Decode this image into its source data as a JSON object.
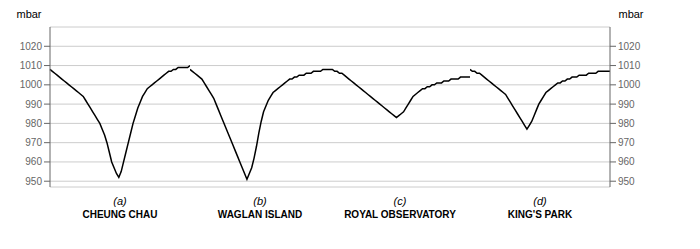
{
  "chart_data": [
    {
      "type": "line",
      "title": "(a)",
      "subtitle": "CHEUNG CHAU",
      "ylabel": "mbar",
      "ylim": [
        947,
        1030
      ],
      "yticks": [
        950,
        960,
        970,
        980,
        990,
        1000,
        1010,
        1020
      ],
      "grid": true,
      "tick_labels": "y",
      "color": "#000000",
      "values": [
        1008,
        1007,
        1006,
        1005,
        1004,
        1003,
        1002,
        1001,
        1000,
        999,
        998,
        997,
        996,
        995,
        994,
        992,
        990,
        988,
        986,
        984,
        982,
        980,
        977,
        974,
        970,
        965,
        960,
        957,
        954,
        952,
        955,
        960,
        965,
        970,
        975,
        980,
        984,
        988,
        991,
        994,
        996,
        998,
        999,
        1000,
        1001,
        1002,
        1003,
        1004,
        1005,
        1006,
        1007,
        1007,
        1008,
        1008,
        1009,
        1009,
        1009,
        1009,
        1009,
        1010
      ]
    },
    {
      "type": "line",
      "title": "(b)",
      "subtitle": "WAGLAN ISLAND",
      "ylim": [
        947,
        1030
      ],
      "yticks": [
        950,
        960,
        970,
        980,
        990,
        1000,
        1010,
        1020
      ],
      "grid": true,
      "tick_labels": false,
      "color": "#000000",
      "values": [
        1008,
        1007,
        1006,
        1005,
        1004,
        1003,
        1001,
        999,
        997,
        995,
        993,
        990,
        987,
        984,
        981,
        978,
        975,
        972,
        969,
        966,
        963,
        960,
        957,
        954,
        951,
        954,
        957,
        962,
        968,
        975,
        981,
        986,
        989,
        992,
        994,
        996,
        997,
        998,
        999,
        1000,
        1001,
        1002,
        1003,
        1003,
        1004,
        1004,
        1005,
        1005,
        1005,
        1006,
        1006,
        1006,
        1007,
        1007,
        1007,
        1007,
        1008,
        1008,
        1008,
        1008
      ]
    },
    {
      "type": "line",
      "title": "(c)",
      "subtitle": "ROYAL OBSERVATORY",
      "ylim": [
        947,
        1030
      ],
      "yticks": [
        950,
        960,
        970,
        980,
        990,
        1000,
        1010,
        1020
      ],
      "grid": true,
      "tick_labels": false,
      "color": "#000000",
      "values": [
        1008,
        1008,
        1007,
        1007,
        1006,
        1006,
        1005,
        1004,
        1003,
        1002,
        1001,
        1000,
        999,
        998,
        997,
        996,
        995,
        994,
        993,
        992,
        991,
        990,
        989,
        988,
        987,
        986,
        985,
        984,
        983,
        984,
        985,
        986,
        988,
        990,
        992,
        994,
        995,
        996,
        997,
        998,
        998,
        999,
        999,
        1000,
        1000,
        1001,
        1001,
        1001,
        1002,
        1002,
        1002,
        1003,
        1003,
        1003,
        1003,
        1004,
        1004,
        1004,
        1004,
        1004
      ]
    },
    {
      "type": "line",
      "title": "(d)",
      "subtitle": "KING'S PARK",
      "ylabel": "mbar",
      "ylim": [
        947,
        1030
      ],
      "yticks": [
        950,
        960,
        970,
        980,
        990,
        1000,
        1010,
        1020
      ],
      "grid": true,
      "tick_labels": "y",
      "color": "#000000",
      "values": [
        1008,
        1007,
        1007,
        1006,
        1006,
        1005,
        1004,
        1003,
        1002,
        1001,
        1000,
        999,
        998,
        997,
        996,
        995,
        993,
        991,
        989,
        987,
        985,
        983,
        981,
        979,
        977,
        979,
        981,
        984,
        987,
        990,
        992,
        994,
        996,
        997,
        998,
        999,
        1000,
        1001,
        1001,
        1002,
        1002,
        1003,
        1003,
        1004,
        1004,
        1004,
        1005,
        1005,
        1005,
        1005,
        1006,
        1006,
        1006,
        1006,
        1007,
        1007,
        1007,
        1007,
        1007,
        1007
      ]
    }
  ]
}
